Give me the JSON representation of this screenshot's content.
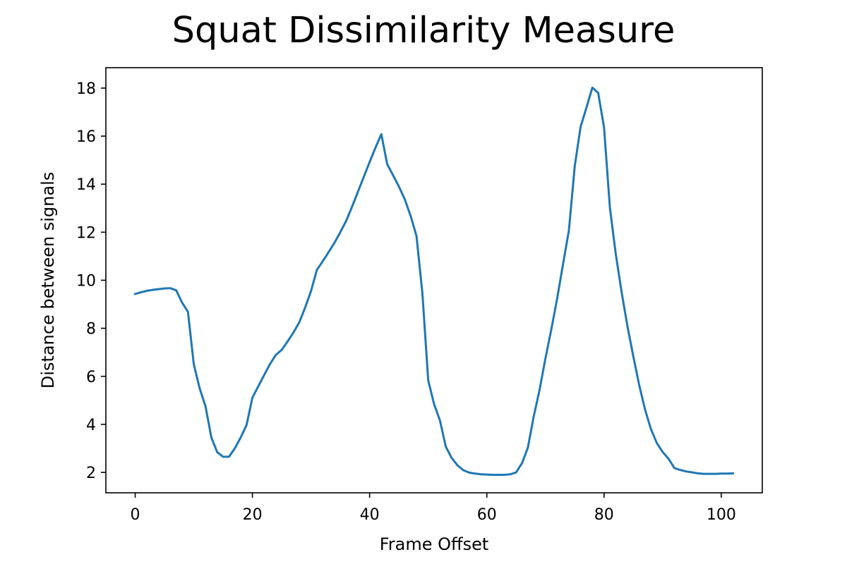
{
  "chart_data": {
    "type": "line",
    "title": "Squat Dissimilarity Measure",
    "xlabel": "Frame Offset",
    "ylabel": "Distance between signals",
    "xlim": [
      -5,
      107
    ],
    "ylim": [
      1.15,
      18.85
    ],
    "xticks": [
      0,
      20,
      40,
      60,
      80,
      100
    ],
    "yticks": [
      2,
      4,
      6,
      8,
      10,
      12,
      14,
      16,
      18
    ],
    "grid": false,
    "line_color": "#1f77b4",
    "series": [
      {
        "x": [
          0,
          1,
          2,
          3,
          4,
          5,
          6,
          7,
          8,
          9,
          10,
          11,
          12,
          13,
          14,
          15,
          16,
          17,
          18,
          19,
          20,
          21,
          22,
          23,
          24,
          25,
          26,
          27,
          28,
          29,
          30,
          31,
          32,
          33,
          34,
          35,
          36,
          37,
          38,
          39,
          40,
          41,
          42,
          43,
          44,
          45,
          46,
          47,
          48,
          49,
          50,
          51,
          52,
          53,
          54,
          55,
          56,
          57,
          58,
          59,
          60,
          61,
          62,
          63,
          64,
          65,
          66,
          67,
          68,
          69,
          70,
          71,
          72,
          73,
          74,
          75,
          76,
          77,
          78,
          79,
          80,
          81,
          82,
          83,
          84,
          85,
          86,
          87,
          88,
          89,
          90,
          91,
          92,
          93,
          94,
          95,
          96,
          97,
          98,
          99,
          100,
          101,
          102
        ],
        "values": [
          9.43,
          9.5,
          9.56,
          9.6,
          9.63,
          9.66,
          9.67,
          9.58,
          9.07,
          8.69,
          6.5,
          5.5,
          4.75,
          3.45,
          2.84,
          2.65,
          2.65,
          3.0,
          3.45,
          3.97,
          5.11,
          5.58,
          6.05,
          6.51,
          6.89,
          7.1,
          7.45,
          7.82,
          8.25,
          8.86,
          9.55,
          10.43,
          10.79,
          11.17,
          11.56,
          12.0,
          12.47,
          13.06,
          13.68,
          14.3,
          14.92,
          15.52,
          16.08,
          14.83,
          14.37,
          13.9,
          13.37,
          12.68,
          11.84,
          9.47,
          5.83,
          4.84,
          4.16,
          3.07,
          2.6,
          2.29,
          2.09,
          1.99,
          1.95,
          1.92,
          1.91,
          1.9,
          1.9,
          1.9,
          1.92,
          2.0,
          2.38,
          3.03,
          4.33,
          5.44,
          6.75,
          7.95,
          9.24,
          10.67,
          12.07,
          14.75,
          16.39,
          17.19,
          18.02,
          17.8,
          16.36,
          13.01,
          11.09,
          9.5,
          8.07,
          6.82,
          5.63,
          4.61,
          3.8,
          3.22,
          2.85,
          2.57,
          2.18,
          2.1,
          2.04,
          2.0,
          1.96,
          1.94,
          1.94,
          1.94,
          1.95,
          1.95,
          1.96
        ]
      }
    ]
  }
}
